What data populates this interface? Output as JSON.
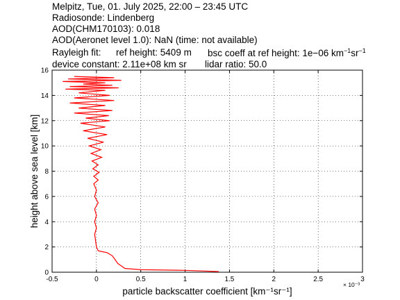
{
  "header": {
    "line1": "Melpitz, Tue, 01. July 2025, 22:00 – 23:45 UTC",
    "line2": "Radiosonde: Lindenberg",
    "line3": "AOD(CHM170103): 0.018",
    "line4": "AOD(Aeronet level 1.0): NaN   (time: not available)",
    "rayleigh_label": "Rayleigh fit:",
    "ref_height": "ref height: 5409 m",
    "bsc_coeff_text": "bsc coeff at ref height: 1e−06 km",
    "bsc_exp1": "−1",
    "bsc_mid": "sr",
    "bsc_exp2": "−1",
    "device_constant": "device constant: 2.11e+08 km sr",
    "lidar_ratio": "lidar ratio: 50.0"
  },
  "colors": {
    "profile": "#ff0000",
    "axes": "#000000",
    "grid": "#000000"
  },
  "chart_data": {
    "type": "line",
    "title": "",
    "xlabel": "particle backscatter coefficient [km⁻¹sr⁻¹]",
    "ylabel": "height above sea level [km]",
    "x_multiplier": "× 10⁻³",
    "xlim": [
      -0.5,
      3.0
    ],
    "ylim": [
      0,
      16
    ],
    "xticks": [
      -0.5,
      0,
      0.5,
      1,
      1.5,
      2,
      2.5,
      3
    ],
    "xtick_labels": [
      "-0.5",
      "0",
      "0.5",
      "1",
      "1.5",
      "2",
      "2.5",
      "3"
    ],
    "yticks": [
      0,
      2,
      4,
      6,
      8,
      10,
      12,
      14,
      16
    ],
    "ytick_labels": [
      "0",
      "2",
      "4",
      "6",
      "8",
      "10",
      "12",
      "14",
      "16"
    ],
    "grid": "dotted",
    "series": [
      {
        "units_x": "1e-3 km^-1 sr^-1",
        "units_y": "km",
        "x": [
          1.38,
          1.2,
          1.0,
          0.5,
          0.32,
          0.28,
          0.24,
          0.22,
          0.2,
          0.18,
          0.12,
          0.05,
          0.02,
          0.0,
          -0.01,
          -0.02,
          0.0,
          -0.02,
          0.0,
          -0.02,
          0.02,
          -0.02,
          0.0,
          -0.03,
          0.02,
          -0.03,
          0.03,
          -0.04,
          0.02,
          -0.05,
          0.06,
          -0.06,
          0.05,
          -0.08,
          0.08,
          -0.1,
          0.12,
          -0.15,
          0.1,
          -0.18,
          0.15,
          -0.12,
          0.14,
          -0.25,
          0.18,
          -0.2,
          0.1,
          -0.3,
          0.2,
          -0.25,
          0.15,
          -0.2,
          0.1,
          -0.35,
          0.25,
          -0.3,
          0.18,
          -0.15,
          0.1,
          -0.38,
          0.28,
          -0.32,
          0.2,
          -0.25
        ],
        "y": [
          0.05,
          0.1,
          0.15,
          0.2,
          0.3,
          0.5,
          0.7,
          0.9,
          1.1,
          1.3,
          1.55,
          1.65,
          1.7,
          2.0,
          2.5,
          3.0,
          3.5,
          4.0,
          4.5,
          5.0,
          5.5,
          6.0,
          6.5,
          7.0,
          7.3,
          7.6,
          7.9,
          8.2,
          8.5,
          8.8,
          9.1,
          9.4,
          9.7,
          10.0,
          10.3,
          10.6,
          10.9,
          11.2,
          11.5,
          11.8,
          12.0,
          12.2,
          12.4,
          12.6,
          12.8,
          13.0,
          13.2,
          13.4,
          13.6,
          13.8,
          14.0,
          14.2,
          14.4,
          14.5,
          14.6,
          14.7,
          14.8,
          14.9,
          15.0,
          15.1,
          15.2,
          15.3,
          15.4,
          15.5
        ]
      }
    ]
  }
}
